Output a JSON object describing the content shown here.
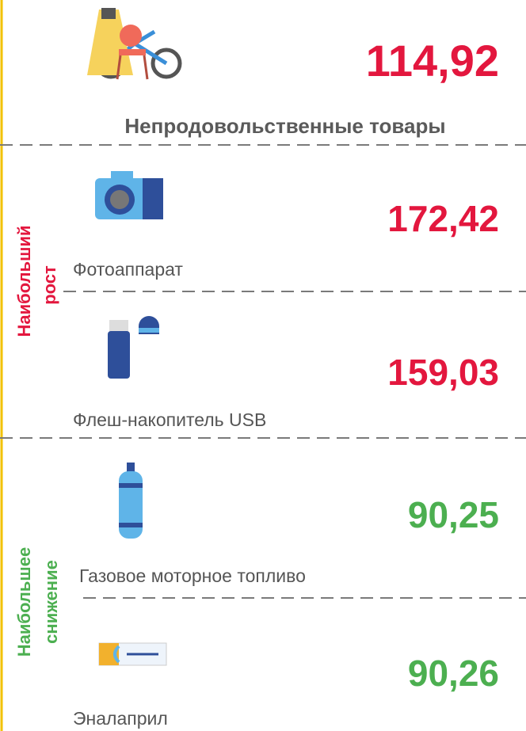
{
  "top": {
    "value": "114,92",
    "label": "Непродовольственные товары"
  },
  "groups": [
    {
      "title": [
        "Наибольший",
        "рост"
      ],
      "items": [
        {
          "label": "Фотоаппарат",
          "value": "172,42"
        },
        {
          "label": "Флеш-накопитель USB",
          "value": "159,03"
        }
      ]
    },
    {
      "title": [
        "Наибольшее",
        "снижение"
      ],
      "items": [
        {
          "label": "Газовое моторное топливо",
          "value": "90,25"
        },
        {
          "label": "Эналаприл",
          "value": "90,26"
        }
      ]
    }
  ]
}
